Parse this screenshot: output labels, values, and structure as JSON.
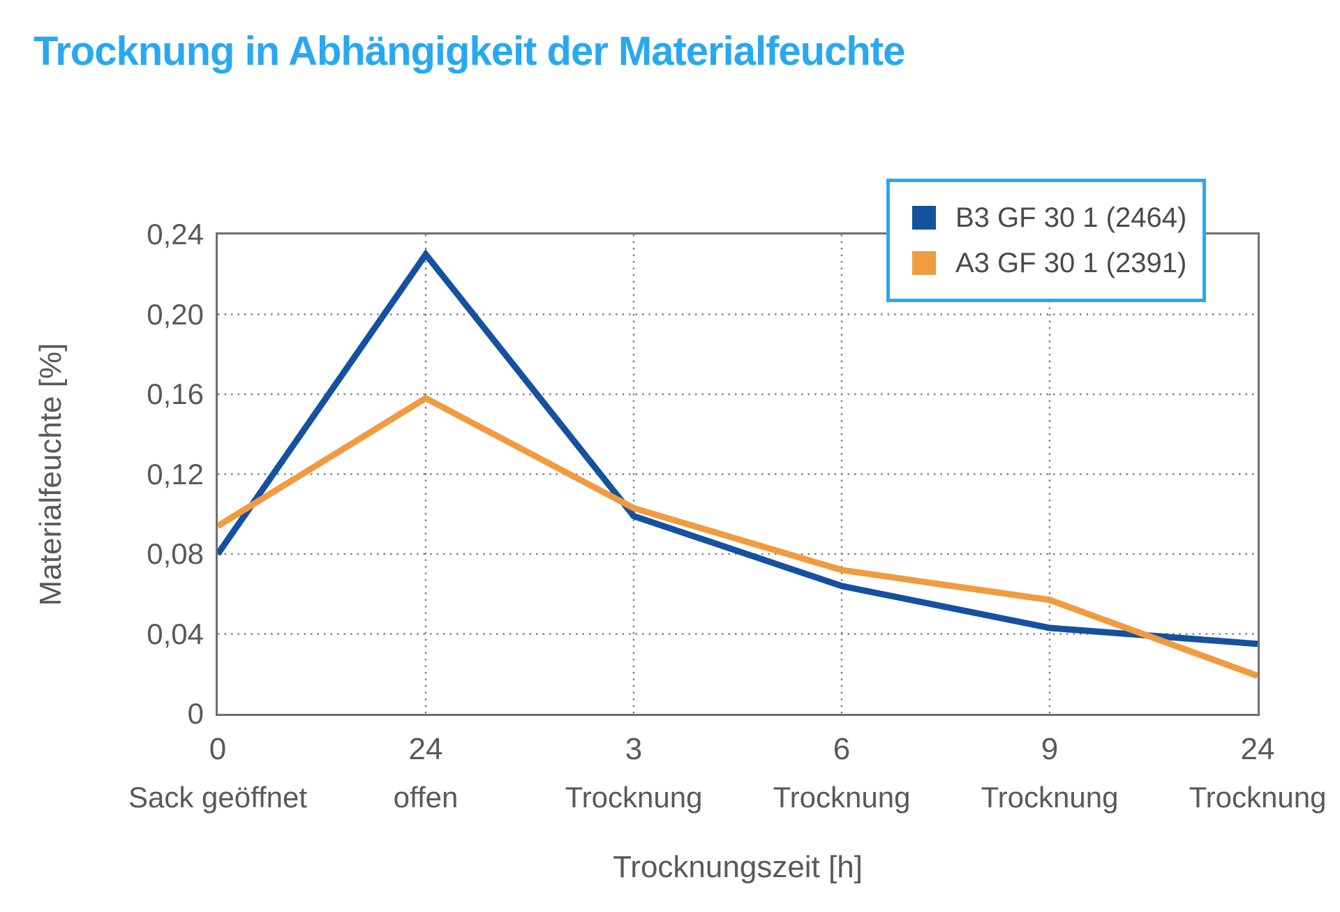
{
  "colors": {
    "title": "#29A8F0",
    "legend_border": "#29A8F0",
    "axis_text": "#595959",
    "plot_border": "#6F6F6F",
    "gridline": "#7F7F7F",
    "background": "#FFFFFF"
  },
  "chart_data": {
    "type": "line",
    "title": "Trocknung in Abhängigkeit der Materialfeuchte",
    "xlabel": "Trocknungszeit [h]",
    "ylabel": "Materialfeuchte [%]",
    "ylim": [
      0,
      0.24
    ],
    "ytick_step": 0.04,
    "ytick_labels": [
      "0",
      "0,04",
      "0,08",
      "0,12",
      "0,16",
      "0,20",
      "0,24"
    ],
    "grid": "dotted horizontal and vertical gridlines",
    "legend_position": "top-right overlapping plot",
    "categories": [
      {
        "tick": "0",
        "label": "Sack geöffnet"
      },
      {
        "tick": "24",
        "label": "offen"
      },
      {
        "tick": "3",
        "label": "Trocknung"
      },
      {
        "tick": "6",
        "label": "Trocknung"
      },
      {
        "tick": "9",
        "label": "Trocknung"
      },
      {
        "tick": "24",
        "label": "Trocknung"
      }
    ],
    "series": [
      {
        "name": "B3 GF 30 1 (2464)",
        "color": "#14519F",
        "values": [
          0.08,
          0.23,
          0.099,
          0.064,
          0.043,
          0.035
        ]
      },
      {
        "name": "A3 GF 30 1 (2391)",
        "color": "#F09B40",
        "values": [
          0.094,
          0.158,
          0.103,
          0.072,
          0.057,
          0.019
        ]
      }
    ]
  }
}
